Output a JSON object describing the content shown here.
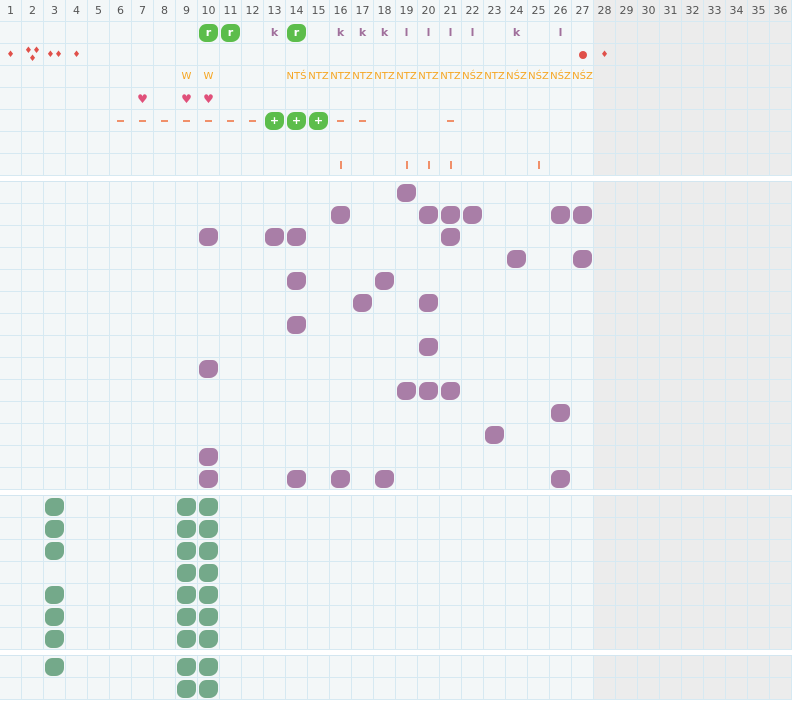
{
  "header": {
    "columns": [
      "1",
      "2",
      "3",
      "4",
      "5",
      "6",
      "7",
      "8",
      "9",
      "10",
      "11",
      "12",
      "13",
      "14",
      "15",
      "16",
      "17",
      "18",
      "19",
      "20",
      "21",
      "22",
      "23",
      "24",
      "25",
      "26",
      "27",
      "28",
      "29",
      "30",
      "31",
      "32",
      "33",
      "34",
      "35",
      "36"
    ],
    "active_columns": 27
  },
  "colors": {
    "purple": "#a97ea7",
    "green": "#74a98a",
    "bright_green": "#5cbd4b",
    "drop": "#e0504a",
    "heart": "#e0507a",
    "text_orange": "#f5a623",
    "dash": "#f0906a",
    "grid": "#d6e9f2",
    "inactive": "#ececec"
  },
  "top_rows": [
    [
      {
        "col": 10,
        "type": "bright",
        "text": "r"
      },
      {
        "col": 11,
        "type": "bright",
        "text": "r"
      },
      {
        "col": 13,
        "type": "k",
        "text": "k"
      },
      {
        "col": 14,
        "type": "bright",
        "text": "r"
      },
      {
        "col": 16,
        "type": "k",
        "text": "k"
      },
      {
        "col": 17,
        "type": "k",
        "text": "k"
      },
      {
        "col": 18,
        "type": "k",
        "text": "k"
      },
      {
        "col": 19,
        "type": "k",
        "text": "l"
      },
      {
        "col": 20,
        "type": "k",
        "text": "l"
      },
      {
        "col": 21,
        "type": "k",
        "text": "l"
      },
      {
        "col": 22,
        "type": "k",
        "text": "l"
      },
      {
        "col": 24,
        "type": "k",
        "text": "k"
      },
      {
        "col": 26,
        "type": "k",
        "text": "l"
      }
    ],
    [
      {
        "col": 1,
        "type": "drop",
        "count": 1
      },
      {
        "col": 2,
        "type": "drop",
        "count": 3
      },
      {
        "col": 3,
        "type": "drop",
        "count": 2
      },
      {
        "col": 4,
        "type": "drop",
        "count": 1
      },
      {
        "col": 27,
        "type": "dot"
      },
      {
        "col": 28,
        "type": "drop",
        "count": 1
      }
    ],
    [
      {
        "col": 9,
        "type": "o",
        "text": "W"
      },
      {
        "col": 10,
        "type": "o",
        "text": "W"
      },
      {
        "col": 14,
        "type": "o",
        "text": "NTŚ"
      },
      {
        "col": 15,
        "type": "o",
        "text": "NTZ"
      },
      {
        "col": 16,
        "type": "o",
        "text": "NTZ"
      },
      {
        "col": 17,
        "type": "o",
        "text": "NTZ"
      },
      {
        "col": 18,
        "type": "o",
        "text": "NTZ"
      },
      {
        "col": 19,
        "type": "o",
        "text": "NTZ"
      },
      {
        "col": 20,
        "type": "o",
        "text": "NTZ"
      },
      {
        "col": 21,
        "type": "o",
        "text": "NTZ"
      },
      {
        "col": 22,
        "type": "o",
        "text": "NŚZ"
      },
      {
        "col": 23,
        "type": "o",
        "text": "NTZ"
      },
      {
        "col": 24,
        "type": "o",
        "text": "NŚZ"
      },
      {
        "col": 25,
        "type": "o",
        "text": "NŚZ"
      },
      {
        "col": 26,
        "type": "o",
        "text": "NŚZ"
      },
      {
        "col": 27,
        "type": "o",
        "text": "NŚZ"
      }
    ],
    [
      {
        "col": 7,
        "type": "heart"
      },
      {
        "col": 9,
        "type": "heart"
      },
      {
        "col": 10,
        "type": "heart"
      }
    ],
    [
      {
        "col": 6,
        "type": "dash"
      },
      {
        "col": 7,
        "type": "dash"
      },
      {
        "col": 8,
        "type": "dash"
      },
      {
        "col": 9,
        "type": "dash"
      },
      {
        "col": 10,
        "type": "dash"
      },
      {
        "col": 11,
        "type": "dash"
      },
      {
        "col": 12,
        "type": "dash"
      },
      {
        "col": 13,
        "type": "bright",
        "text": "+"
      },
      {
        "col": 14,
        "type": "bright",
        "text": "+"
      },
      {
        "col": 15,
        "type": "bright",
        "text": "+"
      },
      {
        "col": 16,
        "type": "dash"
      },
      {
        "col": 17,
        "type": "dash"
      },
      {
        "col": 21,
        "type": "dash"
      }
    ],
    [],
    [
      {
        "col": 16,
        "type": "bar"
      },
      {
        "col": 19,
        "type": "bar"
      },
      {
        "col": 20,
        "type": "bar"
      },
      {
        "col": 21,
        "type": "bar"
      },
      {
        "col": 25,
        "type": "bar"
      }
    ]
  ],
  "purple_rows": [
    [
      19
    ],
    [
      16,
      20,
      21,
      22,
      26,
      27
    ],
    [
      10,
      13,
      14,
      21
    ],
    [
      24,
      27
    ],
    [
      14,
      18
    ],
    [
      17,
      20
    ],
    [
      14
    ],
    [
      20
    ],
    [
      10
    ],
    [
      19,
      20,
      21
    ],
    [
      26
    ],
    [
      23
    ],
    [
      10
    ],
    [
      10,
      14,
      16,
      18,
      26
    ]
  ],
  "green_rows": [
    [
      3,
      9,
      10
    ],
    [
      3,
      9,
      10
    ],
    [
      3,
      9,
      10
    ],
    [
      9,
      10
    ],
    [
      3,
      9,
      10
    ],
    [
      3,
      9,
      10
    ],
    [
      3,
      9,
      10
    ]
  ],
  "green_rows_2": [
    [
      3,
      9,
      10
    ],
    [
      9,
      10
    ]
  ]
}
